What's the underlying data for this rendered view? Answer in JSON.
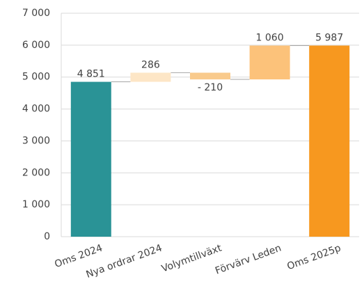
{
  "chart_data": {
    "type": "waterfall",
    "categories": [
      "Oms 2024",
      "Nya ordrar 2024",
      "Volymtillväxt",
      "Förvärv Leden",
      "Oms 2025p"
    ],
    "values": [
      4851,
      286,
      -210,
      1060,
      5987
    ],
    "value_labels": [
      "4 851",
      "286",
      "- 210",
      "1 060",
      "5 987"
    ],
    "measure": [
      "absolute",
      "relative",
      "relative",
      "relative",
      "absolute"
    ],
    "colors": [
      "#2a9396",
      "#fde6c6",
      "#f9ca8c",
      "#fcc27a",
      "#f7981f"
    ],
    "ylim": [
      0,
      7000
    ],
    "yticks": [
      0,
      {
        "value": 1000,
        "label": "1 000"
      },
      {
        "value": 2000,
        "label": "2 000"
      },
      {
        "value": 3000,
        "label": "3 000"
      },
      {
        "value": 4000,
        "label": "4 000"
      },
      {
        "value": 5000,
        "label": "5 000"
      },
      {
        "value": 6000,
        "label": "6 000"
      },
      {
        "value": 7000,
        "label": "7 000"
      }
    ],
    "grid": true
  }
}
